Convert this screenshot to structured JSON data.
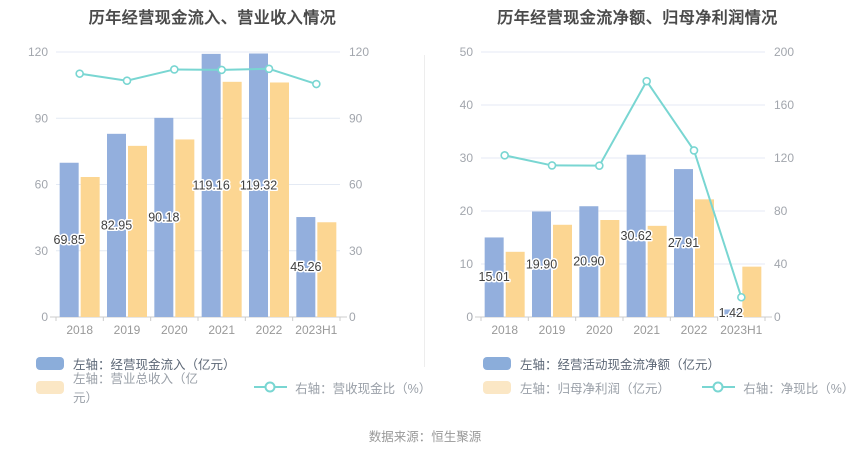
{
  "source": "数据来源：恒生聚源",
  "colors": {
    "bar_blue": "#93afdd",
    "bar_orange": "#fcd692",
    "legend_blue": "#8badda",
    "legend_orange": "#fbe7c5",
    "line_teal": "#79d6d2",
    "grid": "#e4eaf4",
    "axis": "#cccccc",
    "axis_text": "#a2a6ad",
    "title_text": "#4a4a4a",
    "data_label_text": "#404040",
    "legend_text_primary": "#5c6776",
    "legend_text_secondary": "#9aa0a8",
    "source_text": "#999999"
  },
  "chart_data": [
    {
      "type": "bar",
      "title": "历年经营现金流入、营业收入情况",
      "categories": [
        "2018",
        "2019",
        "2020",
        "2021",
        "2022",
        "2023H1"
      ],
      "series": [
        {
          "name": "左轴：经营现金流入（亿元）",
          "type": "bar",
          "axis": "left",
          "values": [
            69.85,
            82.95,
            90.18,
            119.16,
            119.32,
            45.26
          ],
          "labels": [
            "69.85",
            "82.95",
            "90.18",
            "119.16",
            "119.32",
            "45.26"
          ]
        },
        {
          "name": "左轴：营业总收入（亿元）",
          "type": "bar",
          "axis": "left",
          "values": [
            63.4,
            77.5,
            80.4,
            106.5,
            106.2,
            42.9
          ]
        },
        {
          "name": "右轴：营收现金比（%）",
          "type": "line",
          "axis": "right",
          "values": [
            110.2,
            107.0,
            112.1,
            111.9,
            112.4,
            105.5
          ]
        }
      ],
      "left_axis": {
        "min": 0,
        "max": 120,
        "ticks": [
          0,
          30,
          60,
          90,
          120
        ]
      },
      "right_axis": {
        "min": 0,
        "max": 120,
        "ticks": [
          0,
          30,
          60,
          90,
          120
        ]
      },
      "grid": "on",
      "legend_position": "bottom-left"
    },
    {
      "type": "bar",
      "title": "历年经营现金流净额、归母净利润情况",
      "categories": [
        "2018",
        "2019",
        "2020",
        "2021",
        "2022",
        "2023H1"
      ],
      "series": [
        {
          "name": "左轴：经营活动现金流净额（亿元）",
          "type": "bar",
          "axis": "left",
          "values": [
            15.01,
            19.9,
            20.9,
            30.62,
            27.91,
            1.42
          ],
          "labels": [
            "15.01",
            "19.90",
            "20.90",
            "30.62",
            "27.91",
            "1.42"
          ]
        },
        {
          "name": "左轴：归母净利润（亿元）",
          "type": "bar",
          "axis": "left",
          "values": [
            12.3,
            17.4,
            18.3,
            17.2,
            22.2,
            9.5
          ]
        },
        {
          "name": "右轴：净现比（%）",
          "type": "line",
          "axis": "right",
          "values": [
            122.0,
            114.4,
            114.2,
            178.0,
            125.7,
            14.9
          ]
        }
      ],
      "left_axis": {
        "min": 0,
        "max": 50,
        "ticks": [
          0,
          10,
          20,
          30,
          40,
          50
        ]
      },
      "right_axis": {
        "min": 0,
        "max": 200,
        "ticks": [
          0,
          40,
          80,
          120,
          160,
          200
        ]
      },
      "grid": "on",
      "legend_position": "bottom-left"
    }
  ]
}
